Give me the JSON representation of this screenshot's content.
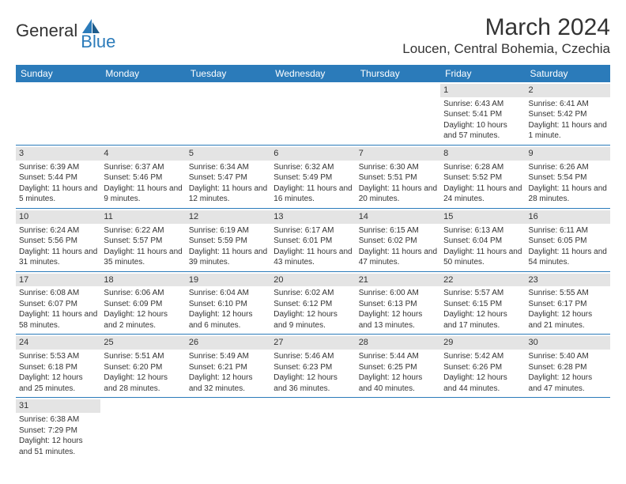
{
  "logo": {
    "text1": "General",
    "text2": "Blue"
  },
  "title": {
    "month": "March 2024",
    "location": "Loucen, Central Bohemia, Czechia"
  },
  "weekdays": [
    "Sunday",
    "Monday",
    "Tuesday",
    "Wednesday",
    "Thursday",
    "Friday",
    "Saturday"
  ],
  "colors": {
    "header_bg": "#2b7bba",
    "header_text": "#ffffff",
    "daynum_bg": "#e4e4e4",
    "row_border": "#2b7bba",
    "text": "#333333",
    "logo_blue": "#2b7bba"
  },
  "weeks": [
    [
      {
        "empty": true
      },
      {
        "empty": true
      },
      {
        "empty": true
      },
      {
        "empty": true
      },
      {
        "empty": true
      },
      {
        "num": "1",
        "sunrise": "Sunrise: 6:43 AM",
        "sunset": "Sunset: 5:41 PM",
        "daylight": "Daylight: 10 hours and 57 minutes."
      },
      {
        "num": "2",
        "sunrise": "Sunrise: 6:41 AM",
        "sunset": "Sunset: 5:42 PM",
        "daylight": "Daylight: 11 hours and 1 minute."
      }
    ],
    [
      {
        "num": "3",
        "sunrise": "Sunrise: 6:39 AM",
        "sunset": "Sunset: 5:44 PM",
        "daylight": "Daylight: 11 hours and 5 minutes."
      },
      {
        "num": "4",
        "sunrise": "Sunrise: 6:37 AM",
        "sunset": "Sunset: 5:46 PM",
        "daylight": "Daylight: 11 hours and 9 minutes."
      },
      {
        "num": "5",
        "sunrise": "Sunrise: 6:34 AM",
        "sunset": "Sunset: 5:47 PM",
        "daylight": "Daylight: 11 hours and 12 minutes."
      },
      {
        "num": "6",
        "sunrise": "Sunrise: 6:32 AM",
        "sunset": "Sunset: 5:49 PM",
        "daylight": "Daylight: 11 hours and 16 minutes."
      },
      {
        "num": "7",
        "sunrise": "Sunrise: 6:30 AM",
        "sunset": "Sunset: 5:51 PM",
        "daylight": "Daylight: 11 hours and 20 minutes."
      },
      {
        "num": "8",
        "sunrise": "Sunrise: 6:28 AM",
        "sunset": "Sunset: 5:52 PM",
        "daylight": "Daylight: 11 hours and 24 minutes."
      },
      {
        "num": "9",
        "sunrise": "Sunrise: 6:26 AM",
        "sunset": "Sunset: 5:54 PM",
        "daylight": "Daylight: 11 hours and 28 minutes."
      }
    ],
    [
      {
        "num": "10",
        "sunrise": "Sunrise: 6:24 AM",
        "sunset": "Sunset: 5:56 PM",
        "daylight": "Daylight: 11 hours and 31 minutes."
      },
      {
        "num": "11",
        "sunrise": "Sunrise: 6:22 AM",
        "sunset": "Sunset: 5:57 PM",
        "daylight": "Daylight: 11 hours and 35 minutes."
      },
      {
        "num": "12",
        "sunrise": "Sunrise: 6:19 AM",
        "sunset": "Sunset: 5:59 PM",
        "daylight": "Daylight: 11 hours and 39 minutes."
      },
      {
        "num": "13",
        "sunrise": "Sunrise: 6:17 AM",
        "sunset": "Sunset: 6:01 PM",
        "daylight": "Daylight: 11 hours and 43 minutes."
      },
      {
        "num": "14",
        "sunrise": "Sunrise: 6:15 AM",
        "sunset": "Sunset: 6:02 PM",
        "daylight": "Daylight: 11 hours and 47 minutes."
      },
      {
        "num": "15",
        "sunrise": "Sunrise: 6:13 AM",
        "sunset": "Sunset: 6:04 PM",
        "daylight": "Daylight: 11 hours and 50 minutes."
      },
      {
        "num": "16",
        "sunrise": "Sunrise: 6:11 AM",
        "sunset": "Sunset: 6:05 PM",
        "daylight": "Daylight: 11 hours and 54 minutes."
      }
    ],
    [
      {
        "num": "17",
        "sunrise": "Sunrise: 6:08 AM",
        "sunset": "Sunset: 6:07 PM",
        "daylight": "Daylight: 11 hours and 58 minutes."
      },
      {
        "num": "18",
        "sunrise": "Sunrise: 6:06 AM",
        "sunset": "Sunset: 6:09 PM",
        "daylight": "Daylight: 12 hours and 2 minutes."
      },
      {
        "num": "19",
        "sunrise": "Sunrise: 6:04 AM",
        "sunset": "Sunset: 6:10 PM",
        "daylight": "Daylight: 12 hours and 6 minutes."
      },
      {
        "num": "20",
        "sunrise": "Sunrise: 6:02 AM",
        "sunset": "Sunset: 6:12 PM",
        "daylight": "Daylight: 12 hours and 9 minutes."
      },
      {
        "num": "21",
        "sunrise": "Sunrise: 6:00 AM",
        "sunset": "Sunset: 6:13 PM",
        "daylight": "Daylight: 12 hours and 13 minutes."
      },
      {
        "num": "22",
        "sunrise": "Sunrise: 5:57 AM",
        "sunset": "Sunset: 6:15 PM",
        "daylight": "Daylight: 12 hours and 17 minutes."
      },
      {
        "num": "23",
        "sunrise": "Sunrise: 5:55 AM",
        "sunset": "Sunset: 6:17 PM",
        "daylight": "Daylight: 12 hours and 21 minutes."
      }
    ],
    [
      {
        "num": "24",
        "sunrise": "Sunrise: 5:53 AM",
        "sunset": "Sunset: 6:18 PM",
        "daylight": "Daylight: 12 hours and 25 minutes."
      },
      {
        "num": "25",
        "sunrise": "Sunrise: 5:51 AM",
        "sunset": "Sunset: 6:20 PM",
        "daylight": "Daylight: 12 hours and 28 minutes."
      },
      {
        "num": "26",
        "sunrise": "Sunrise: 5:49 AM",
        "sunset": "Sunset: 6:21 PM",
        "daylight": "Daylight: 12 hours and 32 minutes."
      },
      {
        "num": "27",
        "sunrise": "Sunrise: 5:46 AM",
        "sunset": "Sunset: 6:23 PM",
        "daylight": "Daylight: 12 hours and 36 minutes."
      },
      {
        "num": "28",
        "sunrise": "Sunrise: 5:44 AM",
        "sunset": "Sunset: 6:25 PM",
        "daylight": "Daylight: 12 hours and 40 minutes."
      },
      {
        "num": "29",
        "sunrise": "Sunrise: 5:42 AM",
        "sunset": "Sunset: 6:26 PM",
        "daylight": "Daylight: 12 hours and 44 minutes."
      },
      {
        "num": "30",
        "sunrise": "Sunrise: 5:40 AM",
        "sunset": "Sunset: 6:28 PM",
        "daylight": "Daylight: 12 hours and 47 minutes."
      }
    ],
    [
      {
        "num": "31",
        "sunrise": "Sunrise: 6:38 AM",
        "sunset": "Sunset: 7:29 PM",
        "daylight": "Daylight: 12 hours and 51 minutes."
      },
      {
        "empty": true
      },
      {
        "empty": true
      },
      {
        "empty": true
      },
      {
        "empty": true
      },
      {
        "empty": true
      },
      {
        "empty": true
      }
    ]
  ]
}
